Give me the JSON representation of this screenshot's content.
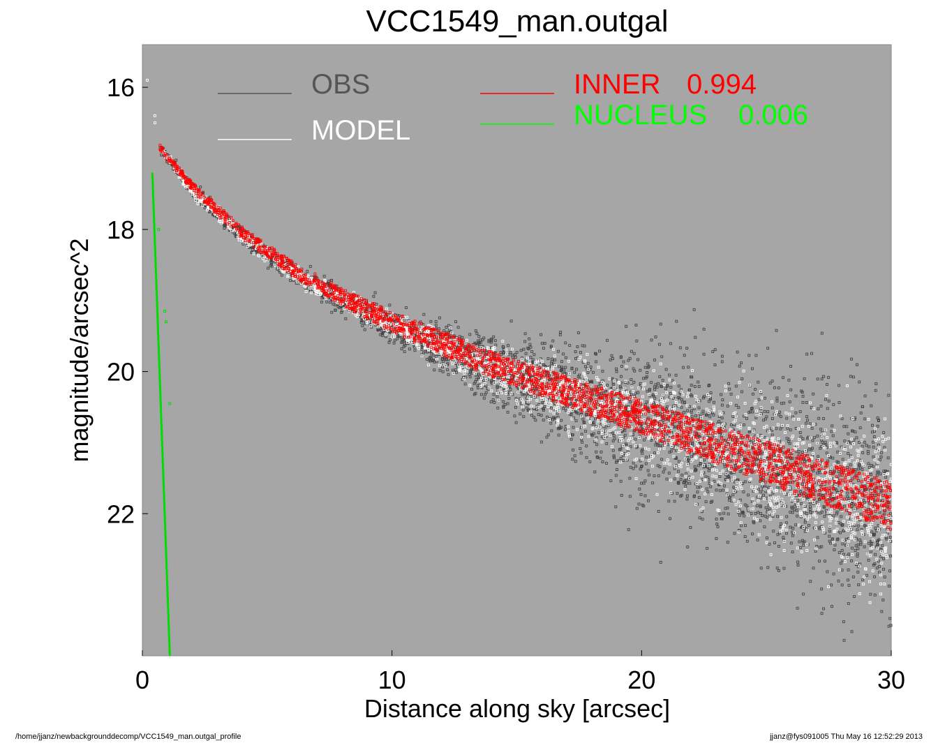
{
  "chart_data": {
    "type": "scatter",
    "title": "VCC1549_man.outgal",
    "xlabel": "Distance along sky [arcsec]",
    "ylabel": "magnitude/arcsec^2",
    "xlim": [
      0,
      30
    ],
    "ylim": [
      24.0,
      15.4
    ],
    "y_inverted": true,
    "x_ticks": [
      0,
      10,
      20,
      30
    ],
    "x_tick_labels": [
      "0",
      "10",
      "20",
      "30"
    ],
    "y_ticks": [
      16,
      18,
      20,
      22
    ],
    "y_tick_labels": [
      "16",
      "18",
      "20",
      "22"
    ],
    "background": "#a6a6a6",
    "legend": [
      {
        "name": "OBS",
        "color": "#555555",
        "placement": "top-left"
      },
      {
        "name": "MODEL",
        "color": "#ffffff",
        "placement": "top-left"
      },
      {
        "name": "INNER",
        "value": "0.994",
        "color": "#ff0000",
        "placement": "top-right"
      },
      {
        "name": "NUCLEUS",
        "value": "0.006",
        "color": "#00ff00",
        "placement": "top-right"
      }
    ],
    "series": [
      {
        "name": "OBS",
        "color": "#444444",
        "marker": "square",
        "profile_x": [
          0.7,
          2,
          4,
          6,
          8,
          10,
          12,
          14,
          16,
          18,
          20,
          22,
          24,
          26,
          28,
          30
        ],
        "profile_y_center": [
          16.85,
          17.45,
          18.1,
          18.6,
          19.0,
          19.35,
          19.65,
          19.95,
          20.2,
          20.45,
          20.7,
          20.95,
          21.2,
          21.45,
          21.7,
          21.95
        ],
        "profile_scatter": [
          0.05,
          0.08,
          0.1,
          0.12,
          0.15,
          0.2,
          0.3,
          0.4,
          0.55,
          0.7,
          0.85,
          1.0,
          1.1,
          1.2,
          1.3,
          1.4
        ]
      },
      {
        "name": "MODEL",
        "color": "#ffffff",
        "marker": "square",
        "profile_x": [
          0.7,
          2,
          4,
          6,
          8,
          10,
          12,
          14,
          16,
          18,
          20,
          22,
          24,
          26,
          28,
          30
        ],
        "profile_y_center": [
          16.85,
          17.45,
          18.1,
          18.6,
          19.0,
          19.35,
          19.65,
          19.95,
          20.2,
          20.45,
          20.7,
          20.95,
          21.2,
          21.45,
          21.7,
          21.95
        ],
        "profile_scatter": [
          0.04,
          0.07,
          0.09,
          0.1,
          0.12,
          0.15,
          0.2,
          0.28,
          0.35,
          0.45,
          0.55,
          0.65,
          0.75,
          0.85,
          0.95,
          1.0
        ]
      },
      {
        "name": "INNER",
        "color": "#ff0000",
        "marker": "square",
        "profile_x": [
          0.7,
          2,
          4,
          6,
          8,
          10,
          12,
          14,
          16,
          18,
          20,
          22,
          24,
          26,
          28,
          30
        ],
        "profile_y_center": [
          16.85,
          17.4,
          18.05,
          18.55,
          18.95,
          19.3,
          19.6,
          19.9,
          20.15,
          20.4,
          20.65,
          20.9,
          21.15,
          21.4,
          21.65,
          21.9
        ],
        "profile_halfwidth": [
          0.04,
          0.06,
          0.08,
          0.1,
          0.12,
          0.14,
          0.16,
          0.18,
          0.2,
          0.22,
          0.24,
          0.26,
          0.28,
          0.3,
          0.32,
          0.33
        ]
      },
      {
        "name": "NUCLEUS",
        "color": "#00dd00",
        "marker": "line",
        "line_x": [
          0.4,
          1.1
        ],
        "line_y": [
          17.2,
          24.0
        ],
        "points": [
          [
            0.65,
            18.0
          ],
          [
            0.9,
            19.15
          ],
          [
            0.95,
            19.3
          ],
          [
            1.1,
            20.45
          ]
        ]
      }
    ]
  },
  "footer": {
    "left": "/home/jjanz/newbackgrounddecomp/VCC1549_man.outgal_profile",
    "right": "jjanz@fys091005  Thu May 16 12:52:29 2013"
  }
}
